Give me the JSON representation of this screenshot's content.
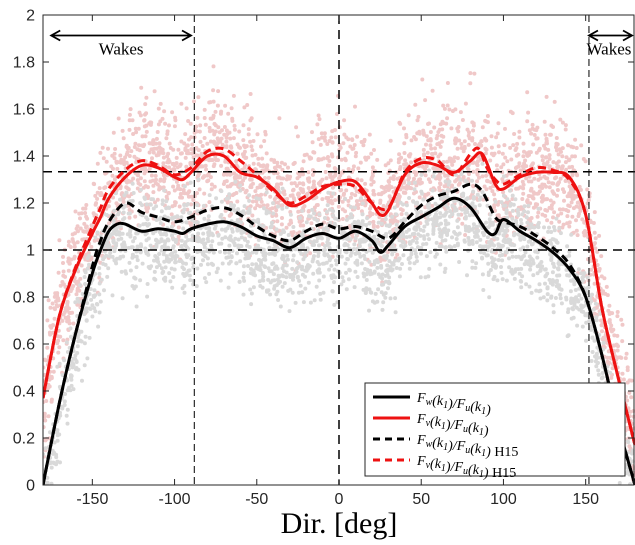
{
  "chart_data": {
    "type": "line",
    "title": "",
    "xlabel": "Dir. [deg]",
    "ylabel": "",
    "xlim": [
      -180,
      180
    ],
    "ylim": [
      0,
      2
    ],
    "xticks": [
      -150,
      -100,
      -50,
      0,
      50,
      100,
      150
    ],
    "yticks": [
      0,
      0.2,
      0.4,
      0.6,
      0.8,
      1,
      1.2,
      1.4,
      1.6,
      1.8,
      2
    ],
    "xtick_labels": [
      "-150",
      "-100",
      "-50",
      "0",
      "50",
      "100",
      "150"
    ],
    "ytick_labels": [
      "0",
      "0.2",
      "0.4",
      "0.6",
      "0.8",
      "1",
      "1.2",
      "1.4",
      "1.6",
      "1.8",
      "2"
    ],
    "grid": false,
    "legend_placement": "bottom-right",
    "reference_lines": {
      "horizontal_y": [
        1,
        1.333
      ],
      "vertical_x": [
        -88,
        0,
        152
      ]
    },
    "annotations": [
      {
        "text": "Wakes",
        "x_range": [
          -175,
          -90
        ],
        "y": 1.9
      },
      {
        "text": "Wakes",
        "x_range": [
          152,
          180
        ],
        "y": 1.9
      }
    ],
    "scatter_colors": {
      "red_cloud": "#f0c8c8",
      "gray_cloud": "#d9d9d9"
    },
    "series": [
      {
        "name": "F_w(k_1)/F_u(k_1)",
        "color": "#000000",
        "style": "solid",
        "x": [
          -180,
          -170,
          -160,
          -150,
          -145,
          -140,
          -135,
          -130,
          -120,
          -110,
          -100,
          -95,
          -90,
          -80,
          -70,
          -60,
          -50,
          -40,
          -30,
          -20,
          -10,
          0,
          10,
          20,
          25,
          30,
          40,
          50,
          60,
          70,
          80,
          90,
          95,
          100,
          110,
          120,
          130,
          140,
          150,
          160,
          170,
          180
        ],
        "y": [
          0.0,
          0.35,
          0.65,
          0.9,
          1.0,
          1.08,
          1.11,
          1.11,
          1.08,
          1.09,
          1.08,
          1.07,
          1.09,
          1.11,
          1.12,
          1.1,
          1.06,
          1.04,
          1.01,
          1.05,
          1.07,
          1.05,
          1.08,
          1.04,
          0.99,
          1.02,
          1.1,
          1.14,
          1.18,
          1.22,
          1.18,
          1.08,
          1.07,
          1.13,
          1.08,
          1.04,
          0.99,
          0.92,
          0.8,
          0.55,
          0.25,
          0.0
        ]
      },
      {
        "name": "F_v(k_1)/F_u(k_1)",
        "color": "#ee1111",
        "style": "solid",
        "x": [
          -180,
          -170,
          -160,
          -150,
          -145,
          -140,
          -130,
          -120,
          -110,
          -100,
          -95,
          -90,
          -80,
          -70,
          -60,
          -50,
          -40,
          -30,
          -20,
          -10,
          0,
          10,
          20,
          25,
          30,
          40,
          50,
          60,
          70,
          80,
          87,
          95,
          100,
          110,
          120,
          130,
          140,
          150,
          160,
          170,
          180
        ],
        "y": [
          0.37,
          0.72,
          0.92,
          1.07,
          1.14,
          1.22,
          1.31,
          1.36,
          1.35,
          1.31,
          1.3,
          1.33,
          1.4,
          1.4,
          1.33,
          1.31,
          1.26,
          1.19,
          1.21,
          1.26,
          1.29,
          1.29,
          1.2,
          1.15,
          1.17,
          1.32,
          1.37,
          1.36,
          1.33,
          1.38,
          1.41,
          1.28,
          1.26,
          1.31,
          1.33,
          1.33,
          1.31,
          1.15,
          0.75,
          0.45,
          0.17
        ]
      },
      {
        "name": "F_w(k_1)/F_u(k_1) H15",
        "color": "#000000",
        "style": "dashed",
        "x": [
          -180,
          -170,
          -160,
          -150,
          -145,
          -140,
          -130,
          -120,
          -110,
          -100,
          -90,
          -80,
          -70,
          -60,
          -50,
          -40,
          -30,
          -20,
          -10,
          0,
          10,
          20,
          30,
          40,
          50,
          60,
          70,
          80,
          87,
          95,
          100,
          110,
          120,
          130,
          140,
          150,
          160,
          170,
          180
        ],
        "y": [
          0.0,
          0.35,
          0.65,
          0.93,
          1.04,
          1.12,
          1.2,
          1.16,
          1.14,
          1.12,
          1.14,
          1.17,
          1.18,
          1.15,
          1.1,
          1.06,
          1.04,
          1.08,
          1.11,
          1.09,
          1.1,
          1.08,
          1.05,
          1.12,
          1.19,
          1.23,
          1.25,
          1.28,
          1.25,
          1.14,
          1.12,
          1.1,
          1.06,
          1.01,
          0.94,
          0.8,
          0.55,
          0.25,
          0.0
        ]
      },
      {
        "name": "F_v(k_1)/F_u(k_1) H15",
        "color": "#ee1111",
        "style": "dashed",
        "x": [
          -180,
          -170,
          -160,
          -150,
          -145,
          -140,
          -130,
          -120,
          -110,
          -100,
          -90,
          -80,
          -70,
          -60,
          -50,
          -40,
          -30,
          -20,
          -10,
          0,
          10,
          20,
          30,
          40,
          50,
          60,
          70,
          80,
          85,
          90,
          95,
          100,
          110,
          120,
          130,
          140,
          150,
          160,
          170,
          180
        ],
        "y": [
          0.37,
          0.72,
          0.93,
          1.1,
          1.18,
          1.26,
          1.34,
          1.38,
          1.36,
          1.32,
          1.35,
          1.42,
          1.43,
          1.38,
          1.32,
          1.25,
          1.2,
          1.23,
          1.27,
          1.28,
          1.27,
          1.2,
          1.18,
          1.33,
          1.39,
          1.38,
          1.32,
          1.41,
          1.43,
          1.35,
          1.3,
          1.28,
          1.32,
          1.35,
          1.34,
          1.3,
          1.15,
          0.75,
          0.45,
          0.17
        ]
      }
    ]
  },
  "legend": {
    "entries": [
      {
        "label": "F_w(k_1)/F_u(k_1)",
        "suffix": "",
        "color": "#000000",
        "style": "solid"
      },
      {
        "label": "F_v(k_1)/F_u(k_1)",
        "suffix": "",
        "color": "#ee1111",
        "style": "solid"
      },
      {
        "label": "F_w(k_1)/F_u(k_1)",
        "suffix": " H15",
        "color": "#000000",
        "style": "dashed"
      },
      {
        "label": "F_v(k_1)/F_u(k_1)",
        "suffix": " H15",
        "color": "#ee1111",
        "style": "dashed"
      }
    ]
  }
}
